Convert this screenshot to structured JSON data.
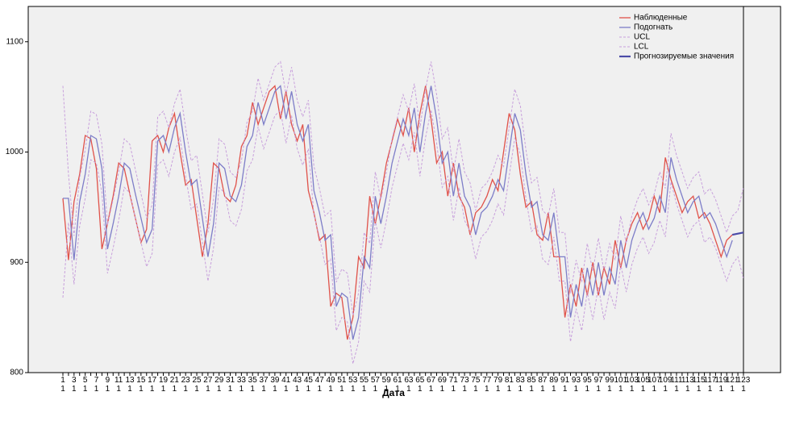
{
  "chart_data": {
    "type": "line",
    "x_label": "Дата",
    "categories": [
      "1\n1",
      null,
      "3\n1",
      null,
      "5\n1",
      null,
      "7\n1",
      null,
      "9\n1",
      null,
      "11\n1",
      null,
      "13\n1",
      null,
      "15\n1",
      null,
      "17\n1",
      null,
      "19\n1",
      null,
      "21\n1",
      null,
      "23\n1",
      null,
      "25\n1",
      null,
      "27\n1",
      null,
      "29\n1",
      null,
      "31\n1",
      null,
      "33\n1",
      null,
      "35\n1",
      null,
      "37\n1",
      null,
      "39\n1",
      null,
      "41\n1",
      null,
      "43\n1",
      null,
      "45\n1",
      null,
      "47\n1",
      null,
      "49\n1",
      null,
      "51\n1",
      null,
      "53\n1",
      null,
      "55\n1",
      null,
      "57\n1",
      null,
      "59\n1",
      null,
      "61\n1",
      null,
      "63\n1",
      null,
      "65\n1",
      null,
      "67\n1",
      null,
      "69\n1",
      null,
      "71\n1",
      null,
      "73\n1",
      null,
      "75\n1",
      null,
      "77\n1",
      null,
      "79\n1",
      null,
      "81\n1",
      null,
      "83\n1",
      null,
      "85\n1",
      null,
      "87\n1",
      null,
      "89\n1",
      null,
      "91\n1",
      null,
      "93\n1",
      null,
      "95\n1",
      null,
      "97\n1",
      null,
      "99\n1",
      null,
      "101\n1",
      null,
      "103\n1",
      null,
      "105\n1",
      null,
      "107\n1",
      null,
      "109\n1",
      null,
      "111\n1",
      null,
      "113\n1",
      null,
      "115\n1",
      null,
      "117\n1",
      null,
      "119\n1",
      null,
      "121\n1",
      null,
      "123\n1"
    ],
    "series": [
      {
        "name": "Наблюденные",
        "color": "#e0524a",
        "width": 1.3,
        "dash": false,
        "values": [
          958,
          902,
          955,
          980,
          1015,
          1012,
          985,
          912,
          935,
          960,
          990,
          985,
          962,
          940,
          918,
          930,
          1010,
          1015,
          1000,
          1022,
          1035,
          1000,
          970,
          975,
          940,
          905,
          935,
          990,
          985,
          960,
          955,
          970,
          1005,
          1015,
          1045,
          1025,
          1040,
          1055,
          1060,
          1030,
          1055,
          1025,
          1010,
          1025,
          965,
          945,
          920,
          925,
          860,
          872,
          868,
          830,
          850,
          905,
          895,
          960,
          935,
          960,
          990,
          1010,
          1030,
          1015,
          1040,
          1000,
          1035,
          1060,
          1030,
          990,
          1000,
          960,
          990,
          960,
          950,
          925,
          945,
          950,
          960,
          975,
          965,
          1000,
          1035,
          1020,
          980,
          950,
          955,
          925,
          920,
          945,
          905,
          905,
          850,
          880,
          860,
          895,
          870,
          900,
          870,
          895,
          880,
          920,
          895,
          920,
          935,
          945,
          930,
          940,
          960,
          945,
          995,
          975,
          960,
          945,
          955,
          960,
          940,
          945,
          935,
          920,
          905,
          920,
          925,
          null,
          null
        ]
      },
      {
        "name": "Подогнать",
        "color": "#7d7dc8",
        "width": 1.3,
        "dash": false,
        "values": [
          958,
          958,
          902,
          955,
          980,
          1015,
          1012,
          985,
          912,
          935,
          960,
          990,
          985,
          962,
          940,
          918,
          930,
          1010,
          1015,
          1000,
          1022,
          1035,
          1000,
          970,
          975,
          940,
          905,
          935,
          990,
          985,
          960,
          955,
          970,
          1005,
          1015,
          1045,
          1025,
          1040,
          1055,
          1060,
          1030,
          1055,
          1025,
          1010,
          1025,
          965,
          945,
          920,
          925,
          860,
          872,
          868,
          830,
          850,
          905,
          895,
          960,
          935,
          960,
          990,
          1010,
          1030,
          1015,
          1040,
          1000,
          1035,
          1060,
          1030,
          990,
          1000,
          960,
          990,
          960,
          950,
          925,
          945,
          950,
          960,
          975,
          965,
          1000,
          1035,
          1020,
          980,
          950,
          955,
          925,
          920,
          945,
          905,
          905,
          850,
          880,
          860,
          895,
          870,
          900,
          870,
          895,
          880,
          920,
          895,
          920,
          935,
          945,
          930,
          940,
          960,
          945,
          995,
          975,
          960,
          945,
          955,
          960,
          940,
          945,
          935,
          920,
          905,
          920,
          null,
          null
        ]
      },
      {
        "name": "UCL",
        "color": "#c8a0dc",
        "width": 1,
        "dash": true,
        "values": [
          1060,
          980,
          924,
          977,
          1002,
          1037,
          1034,
          1007,
          934,
          957,
          982,
          1012,
          1007,
          984,
          962,
          940,
          952,
          1032,
          1037,
          1022,
          1044,
          1057,
          1022,
          992,
          997,
          962,
          927,
          957,
          1012,
          1007,
          982,
          977,
          992,
          1027,
          1037,
          1067,
          1047,
          1062,
          1077,
          1082,
          1052,
          1077,
          1047,
          1032,
          1047,
          987,
          967,
          942,
          947,
          882,
          894,
          890,
          852,
          872,
          927,
          917,
          982,
          957,
          982,
          1012,
          1032,
          1052,
          1037,
          1062,
          1022,
          1057,
          1082,
          1052,
          1012,
          1022,
          982,
          1012,
          982,
          972,
          947,
          967,
          972,
          982,
          997,
          987,
          1022,
          1057,
          1042,
          1002,
          972,
          977,
          947,
          942,
          967,
          927,
          927,
          872,
          902,
          882,
          917,
          892,
          922,
          892,
          917,
          902,
          942,
          917,
          942,
          957,
          967,
          952,
          962,
          982,
          967,
          1017,
          997,
          982,
          967,
          977,
          982,
          962,
          967,
          957,
          942,
          927,
          942,
          947,
          968
        ]
      },
      {
        "name": "LCL",
        "color": "#c8a0dc",
        "width": 1,
        "dash": true,
        "values": [
          868,
          936,
          880,
          933,
          958,
          993,
          990,
          963,
          890,
          913,
          938,
          968,
          963,
          940,
          918,
          896,
          908,
          988,
          993,
          978,
          1000,
          1013,
          978,
          948,
          953,
          918,
          883,
          913,
          968,
          963,
          938,
          933,
          948,
          983,
          993,
          1023,
          1003,
          1018,
          1033,
          1038,
          1008,
          1033,
          1003,
          988,
          1003,
          943,
          923,
          898,
          903,
          838,
          850,
          846,
          808,
          828,
          883,
          873,
          938,
          913,
          938,
          968,
          988,
          1008,
          993,
          1018,
          978,
          1013,
          1038,
          1008,
          968,
          978,
          938,
          968,
          938,
          928,
          903,
          923,
          928,
          938,
          953,
          943,
          978,
          1013,
          998,
          958,
          928,
          933,
          903,
          898,
          923,
          883,
          883,
          828,
          858,
          838,
          873,
          848,
          878,
          848,
          873,
          858,
          898,
          873,
          898,
          913,
          923,
          908,
          918,
          938,
          923,
          973,
          953,
          938,
          923,
          933,
          938,
          918,
          923,
          913,
          898,
          883,
          898,
          905,
          885
        ]
      },
      {
        "name": "Прогнозируемые значения",
        "color": "#4b4ba8",
        "width": 2.2,
        "dash": false,
        "values": [
          null,
          null,
          null,
          null,
          null,
          null,
          null,
          null,
          null,
          null,
          null,
          null,
          null,
          null,
          null,
          null,
          null,
          null,
          null,
          null,
          null,
          null,
          null,
          null,
          null,
          null,
          null,
          null,
          null,
          null,
          null,
          null,
          null,
          null,
          null,
          null,
          null,
          null,
          null,
          null,
          null,
          null,
          null,
          null,
          null,
          null,
          null,
          null,
          null,
          null,
          null,
          null,
          null,
          null,
          null,
          null,
          null,
          null,
          null,
          null,
          null,
          null,
          null,
          null,
          null,
          null,
          null,
          null,
          null,
          null,
          null,
          null,
          null,
          null,
          null,
          null,
          null,
          null,
          null,
          null,
          null,
          null,
          null,
          null,
          null,
          null,
          null,
          null,
          null,
          null,
          null,
          null,
          null,
          null,
          null,
          null,
          null,
          null,
          null,
          null,
          null,
          null,
          null,
          null,
          null,
          null,
          null,
          null,
          null,
          null,
          null,
          null,
          null,
          null,
          null,
          null,
          null,
          null,
          null,
          null,
          925,
          926,
          927
        ]
      }
    ],
    "ylim": [
      800,
      1132
    ],
    "yticks": [
      800,
      900,
      1000,
      1100
    ],
    "grid": false,
    "legend": "top-right"
  }
}
